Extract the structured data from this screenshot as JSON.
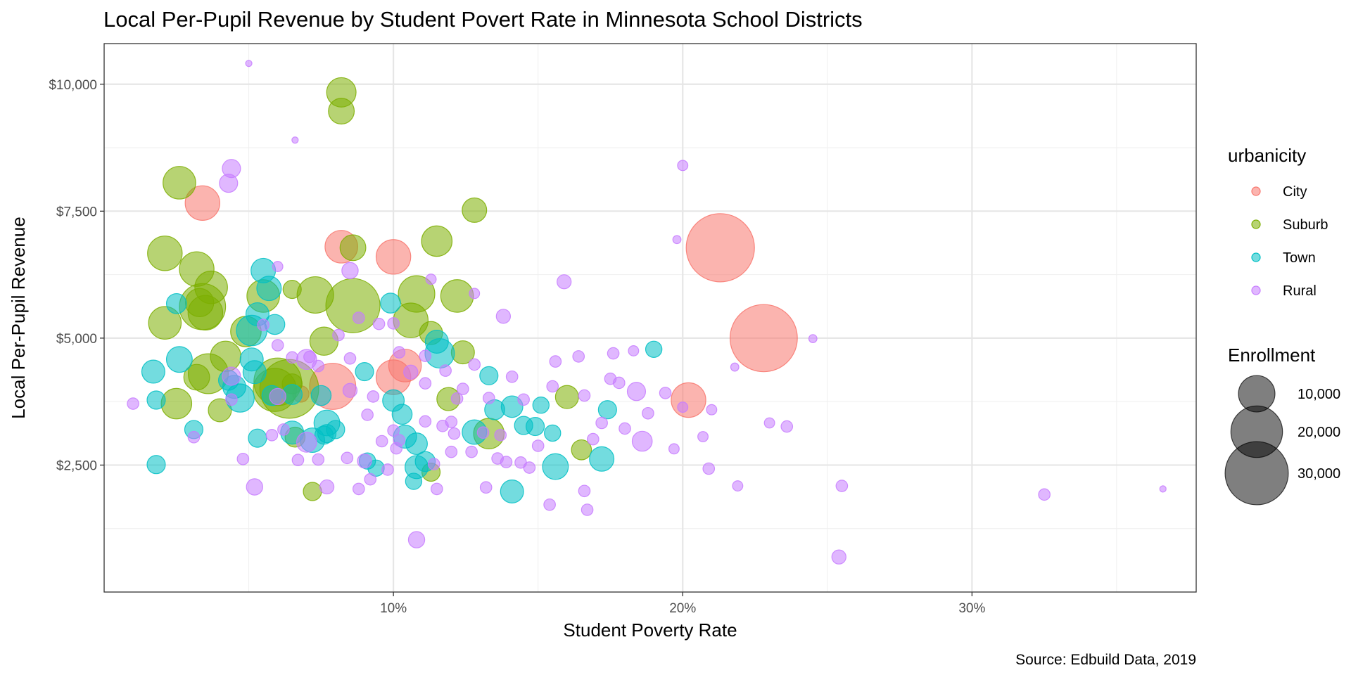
{
  "chart_data": {
    "type": "scatter",
    "title": "Local  Per-Pupil Revenue by Student Povert Rate in Minnesota School Districts",
    "xlabel": "Student Poverty Rate",
    "ylabel": "Local Per-Pupil Revenue",
    "caption": "Source: Edbuild Data, 2019",
    "xlim": [
      0.0,
      0.3775
    ],
    "ylim": [
      0.0,
      10800
    ],
    "x_ticks": [
      0.1,
      0.2,
      0.3
    ],
    "x_tick_labels": [
      "10%",
      "20%",
      "30%"
    ],
    "y_ticks": [
      2500,
      5000,
      7500,
      10000
    ],
    "y_tick_labels": [
      "$2,500",
      "$5,000",
      "$7,500",
      "$10,000"
    ],
    "grid": true,
    "legend_position": "right",
    "color_legend": {
      "title": "urbanicity",
      "items": [
        {
          "label": "City",
          "color": "#F8766D"
        },
        {
          "label": "Suburb",
          "color": "#7CAE00"
        },
        {
          "label": "Town",
          "color": "#00BFC4"
        },
        {
          "label": "Rural",
          "color": "#C77CFF"
        }
      ]
    },
    "size_legend": {
      "title": "Enrollment",
      "items": [
        {
          "label": "10,000",
          "value": 10000
        },
        {
          "label": "20,000",
          "value": 20000
        },
        {
          "label": "30,000",
          "value": 30000
        }
      ]
    },
    "series": [
      {
        "name": "City",
        "points": [
          [
            0.034,
            7660,
            9000
          ],
          [
            0.082,
            6800,
            8000
          ],
          [
            0.1,
            6600,
            9000
          ],
          [
            0.213,
            6780,
            35000
          ],
          [
            0.228,
            5000,
            34000
          ],
          [
            0.1,
            4230,
            9000
          ],
          [
            0.104,
            4460,
            8000
          ],
          [
            0.079,
            4050,
            16000
          ],
          [
            0.202,
            3780,
            9000
          ],
          [
            0.068,
            3900,
            2000
          ]
        ]
      },
      {
        "name": "Suburb",
        "points": [
          [
            0.082,
            9840,
            6500
          ],
          [
            0.082,
            9470,
            5000
          ],
          [
            0.026,
            8060,
            8000
          ],
          [
            0.128,
            7520,
            4500
          ],
          [
            0.021,
            6670,
            9000
          ],
          [
            0.032,
            6360,
            9000
          ],
          [
            0.086,
            6780,
            5000
          ],
          [
            0.115,
            6910,
            7000
          ],
          [
            0.037,
            6000,
            8000
          ],
          [
            0.033,
            5700,
            6000
          ],
          [
            0.034,
            5620,
            16000
          ],
          [
            0.035,
            5500,
            9000
          ],
          [
            0.073,
            5850,
            10000
          ],
          [
            0.055,
            5830,
            8000
          ],
          [
            0.086,
            5640,
            22000
          ],
          [
            0.108,
            5870,
            10000
          ],
          [
            0.122,
            5830,
            8000
          ],
          [
            0.021,
            5300,
            8000
          ],
          [
            0.106,
            5350,
            9000
          ],
          [
            0.049,
            5130,
            7000
          ],
          [
            0.113,
            5100,
            4000
          ],
          [
            0.076,
            4940,
            6000
          ],
          [
            0.042,
            4640,
            7000
          ],
          [
            0.124,
            4720,
            4000
          ],
          [
            0.036,
            4300,
            12000
          ],
          [
            0.032,
            4230,
            5000
          ],
          [
            0.06,
            4140,
            17000
          ],
          [
            0.064,
            4000,
            26000
          ],
          [
            0.059,
            3980,
            14000
          ],
          [
            0.025,
            3710,
            7000
          ],
          [
            0.04,
            3580,
            4000
          ],
          [
            0.16,
            3840,
            4000
          ],
          [
            0.119,
            3800,
            4000
          ],
          [
            0.133,
            3120,
            7000
          ],
          [
            0.066,
            3050,
            3000
          ],
          [
            0.113,
            2360,
            2500
          ],
          [
            0.072,
            1980,
            2500
          ],
          [
            0.165,
            2800,
            3000
          ],
          [
            0.065,
            5960,
            2500
          ],
          [
            0.065,
            4100,
            3000
          ]
        ]
      },
      {
        "name": "Town",
        "points": [
          [
            0.055,
            6330,
            4500
          ],
          [
            0.057,
            5980,
            4500
          ],
          [
            0.025,
            5680,
            3000
          ],
          [
            0.053,
            5470,
            4000
          ],
          [
            0.059,
            5270,
            3000
          ],
          [
            0.051,
            5150,
            7000
          ],
          [
            0.099,
            5690,
            3000
          ],
          [
            0.115,
            4930,
            4000
          ],
          [
            0.116,
            4700,
            6500
          ],
          [
            0.026,
            4580,
            5000
          ],
          [
            0.017,
            4340,
            4000
          ],
          [
            0.051,
            4580,
            4000
          ],
          [
            0.052,
            4330,
            4000
          ],
          [
            0.043,
            4170,
            3000
          ],
          [
            0.045,
            4040,
            4000
          ],
          [
            0.047,
            3820,
            6000
          ],
          [
            0.058,
            3870,
            3000
          ],
          [
            0.065,
            3890,
            3000
          ],
          [
            0.075,
            3870,
            3000
          ],
          [
            0.077,
            3330,
            5000
          ],
          [
            0.072,
            2990,
            4500
          ],
          [
            0.065,
            3140,
            4000
          ],
          [
            0.077,
            3120,
            2500
          ],
          [
            0.076,
            3090,
            2500
          ],
          [
            0.08,
            3200,
            2500
          ],
          [
            0.09,
            4340,
            2500
          ],
          [
            0.1,
            3770,
            3500
          ],
          [
            0.103,
            3500,
            3000
          ],
          [
            0.104,
            3060,
            4000
          ],
          [
            0.108,
            2920,
            3500
          ],
          [
            0.111,
            2570,
            3000
          ],
          [
            0.108,
            2460,
            4000
          ],
          [
            0.128,
            3150,
            4500
          ],
          [
            0.135,
            3590,
            3000
          ],
          [
            0.145,
            3280,
            2500
          ],
          [
            0.141,
            3650,
            3500
          ],
          [
            0.149,
            3260,
            2500
          ],
          [
            0.156,
            2470,
            5000
          ],
          [
            0.172,
            2620,
            4500
          ],
          [
            0.141,
            1980,
            4000
          ],
          [
            0.018,
            3780,
            2500
          ],
          [
            0.018,
            2510,
            2500
          ],
          [
            0.031,
            3200,
            2500
          ],
          [
            0.133,
            4260,
            2500
          ],
          [
            0.19,
            4780,
            2000
          ],
          [
            0.174,
            3590,
            2500
          ],
          [
            0.151,
            3680,
            2000
          ],
          [
            0.155,
            3130,
            2000
          ],
          [
            0.091,
            2580,
            2000
          ],
          [
            0.094,
            2440,
            2000
          ],
          [
            0.107,
            2180,
            2000
          ],
          [
            0.053,
            3030,
            2500
          ]
        ]
      },
      {
        "name": "Rural",
        "points": [
          [
            0.05,
            10410,
            300
          ],
          [
            0.066,
            8900,
            300
          ],
          [
            0.044,
            8340,
            2500
          ],
          [
            0.043,
            8050,
            2500
          ],
          [
            0.2,
            8400,
            800
          ],
          [
            0.06,
            6410,
            800
          ],
          [
            0.085,
            6330,
            2000
          ],
          [
            0.198,
            6940,
            500
          ],
          [
            0.184,
            3950,
            2500
          ],
          [
            0.159,
            6110,
            1500
          ],
          [
            0.138,
            5430,
            1500
          ],
          [
            0.095,
            5280,
            1000
          ],
          [
            0.055,
            5260,
            1000
          ],
          [
            0.106,
            4330,
            1500
          ],
          [
            0.128,
            4480,
            1000
          ],
          [
            0.156,
            4540,
            1000
          ],
          [
            0.164,
            4640,
            1000
          ],
          [
            0.176,
            4700,
            1000
          ],
          [
            0.183,
            4750,
            800
          ],
          [
            0.194,
            3920,
            1000
          ],
          [
            0.21,
            3590,
            800
          ],
          [
            0.085,
            4600,
            1000
          ],
          [
            0.07,
            4580,
            3000
          ],
          [
            0.06,
            3850,
            2000
          ],
          [
            0.085,
            3970,
            1500
          ],
          [
            0.091,
            3490,
            1000
          ],
          [
            0.093,
            3850,
            1000
          ],
          [
            0.111,
            3360,
            1000
          ],
          [
            0.117,
            3270,
            1000
          ],
          [
            0.121,
            3120,
            1000
          ],
          [
            0.131,
            3140,
            1000
          ],
          [
            0.137,
            3090,
            1000
          ],
          [
            0.136,
            2630,
            1000
          ],
          [
            0.144,
            2550,
            1000
          ],
          [
            0.15,
            2880,
            1000
          ],
          [
            0.169,
            3010,
            1000
          ],
          [
            0.186,
            2970,
            3000
          ],
          [
            0.209,
            2430,
            1000
          ],
          [
            0.219,
            2090,
            800
          ],
          [
            0.255,
            2090,
            1000
          ],
          [
            0.254,
            690,
            1500
          ],
          [
            0.325,
            1920,
            1000
          ],
          [
            0.366,
            2030,
            300
          ],
          [
            0.236,
            3260,
            1000
          ],
          [
            0.23,
            3330,
            800
          ],
          [
            0.245,
            4990,
            500
          ],
          [
            0.218,
            4430,
            500
          ],
          [
            0.2,
            3640,
            800
          ],
          [
            0.108,
            1030,
            2000
          ],
          [
            0.115,
            2030,
            1000
          ],
          [
            0.132,
            2060,
            1000
          ],
          [
            0.154,
            1720,
            1000
          ],
          [
            0.166,
            1990,
            1000
          ],
          [
            0.167,
            1620,
            1000
          ],
          [
            0.052,
            2070,
            2000
          ],
          [
            0.077,
            2070,
            1500
          ],
          [
            0.088,
            2030,
            1000
          ],
          [
            0.092,
            2220,
            1000
          ],
          [
            0.098,
            2410,
            1000
          ],
          [
            0.048,
            2620,
            1000
          ],
          [
            0.067,
            2600,
            1000
          ],
          [
            0.074,
            2610,
            1000
          ],
          [
            0.084,
            2640,
            1000
          ],
          [
            0.058,
            3090,
            1000
          ],
          [
            0.062,
            3200,
            1000
          ],
          [
            0.07,
            2950,
            3000
          ],
          [
            0.09,
            2580,
            1500
          ],
          [
            0.096,
            2970,
            1000
          ],
          [
            0.102,
            2990,
            1000
          ],
          [
            0.114,
            2520,
            1000
          ],
          [
            0.12,
            2760,
            1000
          ],
          [
            0.127,
            2760,
            1000
          ],
          [
            0.139,
            2560,
            1000
          ],
          [
            0.147,
            2450,
            1000
          ],
          [
            0.12,
            3350,
            1000
          ],
          [
            0.1,
            3180,
            1000
          ],
          [
            0.101,
            2830,
            1000
          ],
          [
            0.122,
            3810,
            1000
          ],
          [
            0.133,
            3820,
            1000
          ],
          [
            0.145,
            3790,
            1000
          ],
          [
            0.166,
            3870,
            1000
          ],
          [
            0.172,
            3330,
            1000
          ],
          [
            0.18,
            3220,
            1000
          ],
          [
            0.188,
            3520,
            1000
          ],
          [
            0.197,
            2820,
            800
          ],
          [
            0.207,
            3060,
            800
          ],
          [
            0.178,
            4120,
            1000
          ],
          [
            0.175,
            4200,
            1000
          ],
          [
            0.155,
            4050,
            1000
          ],
          [
            0.141,
            4240,
            1000
          ],
          [
            0.124,
            4000,
            1000
          ],
          [
            0.111,
            4110,
            1000
          ],
          [
            0.074,
            4450,
            1000
          ],
          [
            0.071,
            4630,
            1000
          ],
          [
            0.065,
            4620,
            1000
          ],
          [
            0.102,
            4720,
            1000
          ],
          [
            0.111,
            4650,
            1000
          ],
          [
            0.118,
            4360,
            1000
          ],
          [
            0.01,
            3710,
            1000
          ],
          [
            0.044,
            4250,
            2500
          ],
          [
            0.031,
            3050,
            1000
          ],
          [
            0.1,
            5290,
            1000
          ],
          [
            0.128,
            5880,
            800
          ],
          [
            0.113,
            6160,
            800
          ],
          [
            0.06,
            4860,
            1000
          ],
          [
            0.081,
            5060,
            1000
          ],
          [
            0.088,
            5400,
            1000
          ],
          [
            0.044,
            3790,
            1000
          ]
        ]
      }
    ]
  }
}
